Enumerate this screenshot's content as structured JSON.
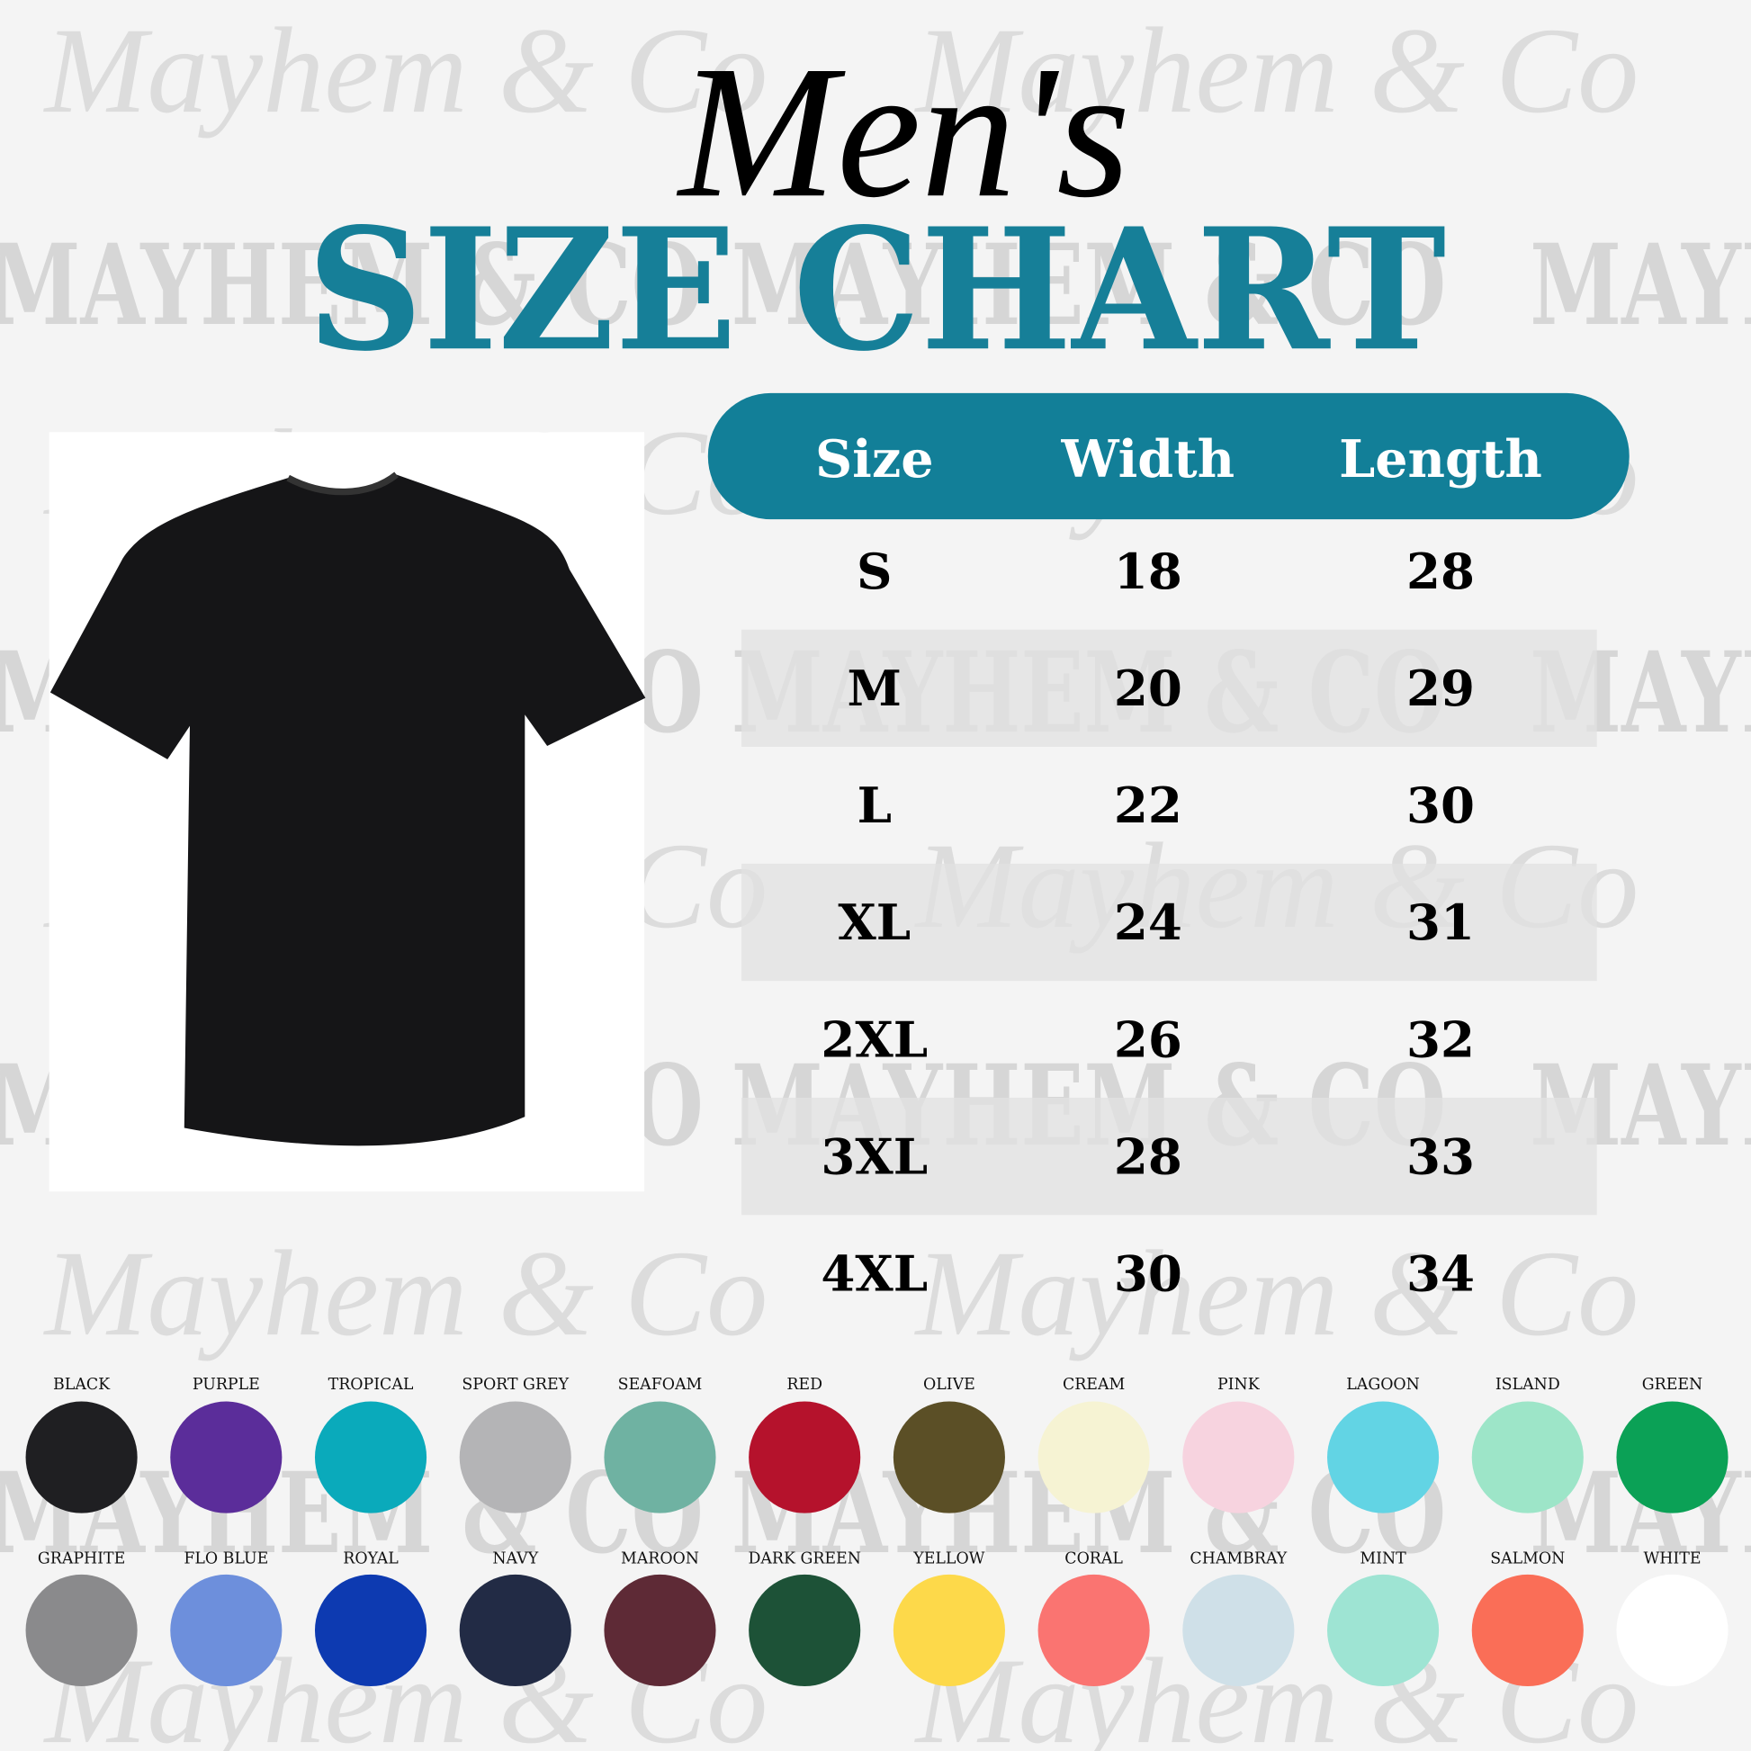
{
  "watermark": [
    "Mayhem & Co",
    "MAYHEM & CO"
  ],
  "header": {
    "script_title": "Men's",
    "title": "SIZE CHART"
  },
  "table": {
    "headers": [
      "Size",
      "Width",
      "Length"
    ],
    "rows": [
      [
        "S",
        18,
        28
      ],
      [
        "M",
        20,
        29
      ],
      [
        "L",
        22,
        30
      ],
      [
        "XL",
        24,
        31
      ],
      [
        "2XL",
        26,
        32
      ],
      [
        "3XL",
        28,
        33
      ],
      [
        "4XL",
        30,
        34
      ]
    ]
  },
  "colors": [
    [
      {
        "name": "BLACK",
        "color": "#1f1f22"
      },
      {
        "name": "PURPLE",
        "color": "#5b2d9a"
      },
      {
        "name": "TROPICAL",
        "color": "#0aaabb"
      },
      {
        "name": "SPORT GREY",
        "color": "#b4b4b6"
      },
      {
        "name": "SEAFOAM",
        "color": "#6fb2a2"
      },
      {
        "name": "RED",
        "color": "#b5122c"
      },
      {
        "name": "OLIVE",
        "color": "#5b4f26"
      },
      {
        "name": "CREAM",
        "color": "#f6f3d3"
      },
      {
        "name": "PINK",
        "color": "#f7d3df"
      },
      {
        "name": "LAGOON",
        "color": "#62d4e4"
      },
      {
        "name": "ISLAND",
        "color": "#9de5c8"
      },
      {
        "name": "GREEN",
        "color": "#0ba156"
      }
    ],
    [
      {
        "name": "GRAPHITE",
        "color": "#8a8a8c"
      },
      {
        "name": "FLO BLUE",
        "color": "#6d8fdc"
      },
      {
        "name": "ROYAL",
        "color": "#0d3ab1"
      },
      {
        "name": "NAVY",
        "color": "#222b45"
      },
      {
        "name": "MAROON",
        "color": "#5e2a36"
      },
      {
        "name": "DARK GREEN",
        "color": "#1d5237"
      },
      {
        "name": "YELLOW",
        "color": "#fdd94a"
      },
      {
        "name": "CORAL",
        "color": "#fa7471"
      },
      {
        "name": "CHAMBRAY",
        "color": "#cfe0e8"
      },
      {
        "name": "MINT",
        "color": "#9ee4d3"
      },
      {
        "name": "SALMON",
        "color": "#fa6e57"
      },
      {
        "name": "WHITE",
        "color": "#ffffff"
      }
    ]
  ]
}
